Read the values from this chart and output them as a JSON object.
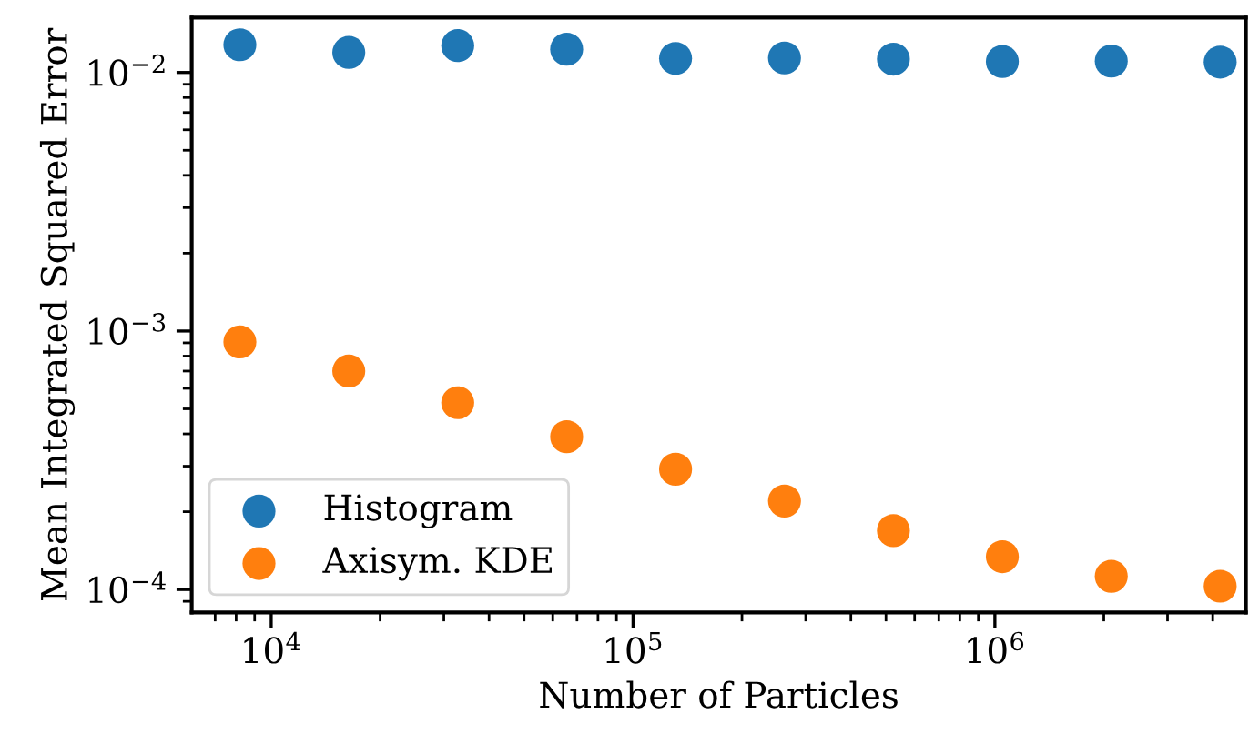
{
  "chart_data": {
    "type": "scatter",
    "xlabel": "Number of Particles",
    "ylabel": "Mean Integrated Squared Error",
    "log": "xy",
    "xlim": [
      6030,
      4940000
    ],
    "ylim": [
      8.15e-05,
      0.0163
    ],
    "xticks": [
      {
        "value": 10000,
        "label": "10$^{4}$"
      },
      {
        "value": 100000,
        "label": "10$^{5}$"
      },
      {
        "value": 1000000,
        "label": "10$^{6}$"
      }
    ],
    "yticks": [
      {
        "value": 0.0001,
        "label": "10$^{−4}$"
      },
      {
        "value": 0.001,
        "label": "10$^{−3}$"
      },
      {
        "value": 0.01,
        "label": "10$^{−2}$"
      }
    ],
    "x": [
      8192,
      16384,
      32768,
      65536,
      131072,
      262144,
      524288,
      1048576,
      2097152,
      4194304
    ],
    "marker": "circle",
    "grid": false,
    "legend": "bottom left",
    "series": [
      {
        "name": "Histogram",
        "color": "#1f77b4",
        "values": [
          0.0128,
          0.01195,
          0.0127,
          0.0123,
          0.01133,
          0.01138,
          0.01126,
          0.01102,
          0.01107,
          0.01097
        ]
      },
      {
        "name": "Axisym. KDE",
        "color": "#ff7f0e",
        "values": [
          0.000907,
          0.0007,
          0.000528,
          0.00039,
          0.000292,
          0.00022,
          0.000169,
          0.000134,
          0.0001125,
          0.000103
        ]
      }
    ]
  }
}
